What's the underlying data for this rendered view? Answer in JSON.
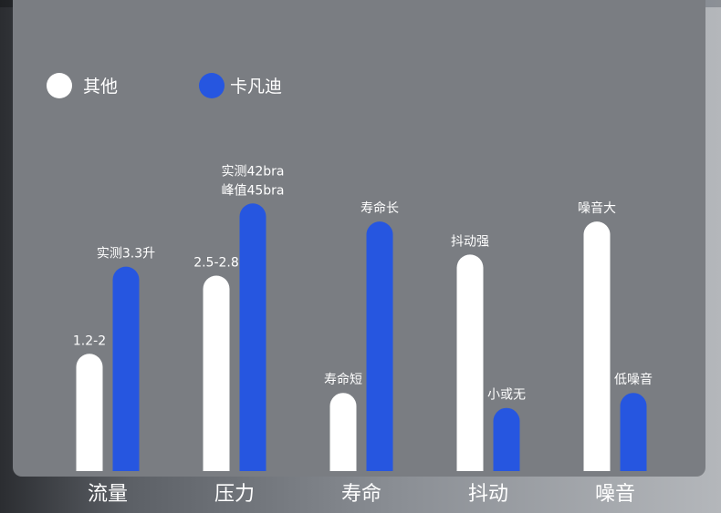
{
  "chart_data": {
    "type": "bar",
    "categories": [
      "流量",
      "压力",
      "寿命",
      "抖动",
      "噪音"
    ],
    "series": [
      {
        "name": "其他",
        "color": "#ffffff",
        "values": [
          39,
          65,
          26,
          72,
          83
        ],
        "labels": [
          [
            "1.2-2"
          ],
          [
            "2.5-2.8"
          ],
          [
            "寿命短"
          ],
          [
            "抖动强"
          ],
          [
            "噪音大"
          ]
        ]
      },
      {
        "name": "卡凡迪",
        "color": "#2656e0",
        "values": [
          68,
          89,
          83,
          21,
          26
        ],
        "labels": [
          [
            "实测3.3升"
          ],
          [
            "实测42bra",
            "峰值45bra"
          ],
          [
            "寿命长"
          ],
          [
            "小或无"
          ],
          [
            "低噪音"
          ]
        ]
      }
    ],
    "ylim": [
      0,
      100
    ],
    "title": "",
    "xlabel": "",
    "ylabel": "",
    "grid": false,
    "legend": "top-left"
  }
}
